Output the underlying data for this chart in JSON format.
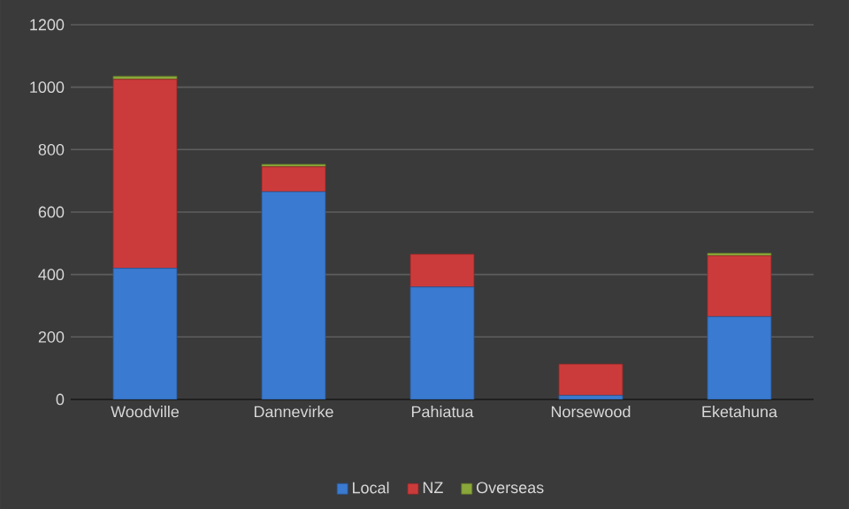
{
  "chart_data": {
    "type": "bar",
    "stacked": true,
    "categories": [
      "Woodville",
      "Dannevirke",
      "Pahiatua",
      "Norsewood",
      "Eketahuna"
    ],
    "series": [
      {
        "name": "Local",
        "color": "#3a7ad0",
        "values": [
          420,
          665,
          360,
          13,
          265
        ]
      },
      {
        "name": "NZ",
        "color": "#cc3b3b",
        "values": [
          605,
          80,
          105,
          100,
          195
        ]
      },
      {
        "name": "Overseas",
        "color": "#8aa83a",
        "values": [
          10,
          8,
          0,
          0,
          8
        ]
      }
    ],
    "ylim": [
      0,
      1200
    ],
    "yticks": [
      0,
      200,
      400,
      600,
      800,
      1000,
      1200
    ],
    "grid": "y",
    "legend": "bottom"
  }
}
